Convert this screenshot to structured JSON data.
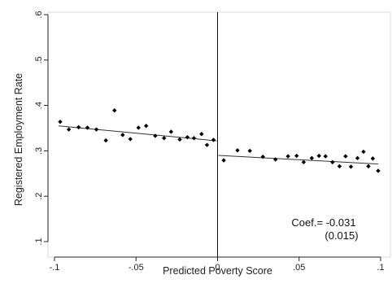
{
  "chart_data": {
    "type": "scatter",
    "title": "",
    "xlabel": "Predicted Poverty Score",
    "ylabel": "Registered Employment Rate",
    "xlim": [
      -0.1,
      0.1
    ],
    "ylim": [
      0.1,
      0.6
    ],
    "x_ticks": [
      -0.1,
      -0.05,
      0,
      0.05,
      0.1
    ],
    "x_tick_labels": [
      "-.1",
      "-.05",
      "0",
      ".05",
      ".1"
    ],
    "y_ticks": [
      0.1,
      0.2,
      0.3,
      0.4,
      0.5,
      0.6
    ],
    "y_tick_labels": [
      ".1",
      ".2",
      ".3",
      ".4",
      ".5",
      ".6"
    ],
    "grid": false,
    "cutoff_x": 0,
    "series": [
      {
        "side": "left",
        "points": [
          [
            -0.0965,
            0.364
          ],
          [
            -0.0912,
            0.347
          ],
          [
            -0.0852,
            0.352
          ],
          [
            -0.0798,
            0.351
          ],
          [
            -0.0743,
            0.347
          ],
          [
            -0.0685,
            0.323
          ],
          [
            -0.0632,
            0.389
          ],
          [
            -0.0582,
            0.335
          ],
          [
            -0.0535,
            0.326
          ],
          [
            -0.0485,
            0.351
          ],
          [
            -0.0438,
            0.355
          ],
          [
            -0.0382,
            0.333
          ],
          [
            -0.0328,
            0.328
          ],
          [
            -0.0285,
            0.342
          ],
          [
            -0.0232,
            0.325
          ],
          [
            -0.0185,
            0.33
          ],
          [
            -0.0145,
            0.328
          ],
          [
            -0.0098,
            0.337
          ],
          [
            -0.0065,
            0.313
          ],
          [
            -0.0025,
            0.324
          ]
        ],
        "fit": {
          "x": [
            -0.0975,
            -0.0005
          ],
          "y": [
            0.355,
            0.322
          ]
        }
      },
      {
        "side": "right",
        "points": [
          [
            0.0038,
            0.279
          ],
          [
            0.0122,
            0.301
          ],
          [
            0.0198,
            0.3
          ],
          [
            0.0278,
            0.287
          ],
          [
            0.0355,
            0.281
          ],
          [
            0.0432,
            0.288
          ],
          [
            0.0485,
            0.289
          ],
          [
            0.0528,
            0.275
          ],
          [
            0.0578,
            0.284
          ],
          [
            0.0622,
            0.289
          ],
          [
            0.0662,
            0.288
          ],
          [
            0.0705,
            0.275
          ],
          [
            0.0748,
            0.266
          ],
          [
            0.0785,
            0.288
          ],
          [
            0.0818,
            0.265
          ],
          [
            0.0858,
            0.284
          ],
          [
            0.0895,
            0.298
          ],
          [
            0.0925,
            0.266
          ],
          [
            0.0952,
            0.283
          ],
          [
            0.0985,
            0.256
          ]
        ],
        "fit": {
          "x": [
            0.0005,
            0.0985
          ],
          "y": [
            0.29,
            0.271
          ]
        }
      }
    ],
    "annotation": {
      "line1": "Coef.= -0.031",
      "line2": "(0.015)"
    }
  }
}
